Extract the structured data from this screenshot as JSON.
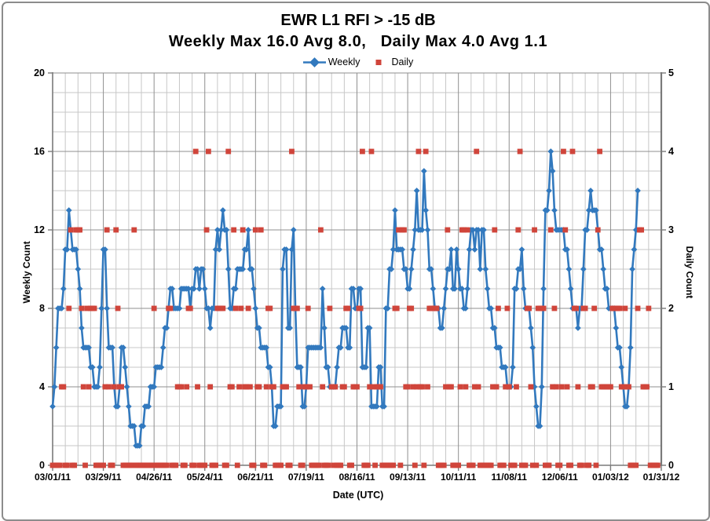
{
  "chart_data": {
    "type": "line",
    "title": "EWR L1 RFI > -15 dB",
    "subtitle": "Weekly Max 16.0 Avg 8.0,   Daily Max 4.0 Avg 1.1",
    "stats": {
      "weekly_max": 16.0,
      "weekly_avg": 8.0,
      "daily_max": 4.0,
      "daily_avg": 1.1
    },
    "x_axis": {
      "label": "Date (UTC)",
      "tick_labels": [
        "03/01/11",
        "03/29/11",
        "04/26/11",
        "05/24/11",
        "06/21/11",
        "07/19/11",
        "08/16/11",
        "09/13/11",
        "10/11/11",
        "11/08/11",
        "12/06/11",
        "01/03/12",
        "01/31/12"
      ],
      "days_total": 336,
      "tick_interval_days": 28,
      "minor_gridline_days": 7
    },
    "y_left": {
      "label": "Weekly Count",
      "min": 0,
      "max": 20,
      "major": 4,
      "minor": 1,
      "tick_labels": [
        "0",
        "4",
        "8",
        "12",
        "16",
        "20"
      ]
    },
    "y_right": {
      "label": "Daily Count",
      "min": 0,
      "max": 5,
      "major": 1,
      "minor": 0.25,
      "tick_labels": [
        "0",
        "1",
        "2",
        "3",
        "4",
        "5"
      ]
    },
    "legend_position": "top",
    "grid": true,
    "series": [
      {
        "name": "Weekly",
        "axis": "left",
        "color": "#3279be",
        "marker": "diamond",
        "line": true,
        "start_day": 0,
        "values": [
          3,
          4,
          6,
          8,
          8,
          8,
          9,
          11,
          11,
          13,
          12,
          11,
          11,
          11,
          10,
          9,
          7,
          6,
          6,
          6,
          6,
          5,
          5,
          4,
          4,
          4,
          5,
          8,
          11,
          11,
          8,
          6,
          6,
          6,
          4,
          3,
          3,
          4,
          6,
          6,
          5,
          4,
          3,
          2,
          2,
          2,
          1,
          1,
          1,
          2,
          2,
          3,
          3,
          3,
          4,
          4,
          4,
          5,
          5,
          5,
          5,
          6,
          7,
          7,
          8,
          9,
          9,
          8,
          8,
          8,
          8,
          9,
          9,
          9,
          9,
          9,
          8,
          9,
          9,
          10,
          10,
          9,
          10,
          10,
          9,
          8,
          8,
          7,
          8,
          8,
          11,
          12,
          11,
          12,
          13,
          12,
          12,
          10,
          8,
          8,
          9,
          9,
          10,
          10,
          10,
          10,
          11,
          11,
          12,
          10,
          10,
          9,
          8,
          7,
          7,
          6,
          6,
          6,
          6,
          5,
          5,
          4,
          2,
          2,
          3,
          3,
          3,
          10,
          11,
          11,
          7,
          7,
          11,
          12,
          8,
          5,
          5,
          5,
          3,
          3,
          4,
          6,
          6,
          6,
          6,
          6,
          6,
          6,
          6,
          9,
          7,
          5,
          5,
          4,
          4,
          4,
          4,
          5,
          6,
          6,
          7,
          7,
          7,
          6,
          6,
          9,
          9,
          8,
          8,
          9,
          9,
          5,
          5,
          5,
          7,
          7,
          3,
          3,
          3,
          3,
          5,
          5,
          3,
          3,
          8,
          8,
          10,
          10,
          11,
          13,
          11,
          11,
          11,
          11,
          10,
          10,
          9,
          9,
          10,
          11,
          12,
          14,
          12,
          12,
          12,
          15,
          13,
          12,
          10,
          10,
          9,
          8,
          8,
          8,
          7,
          7,
          8,
          9,
          10,
          10,
          11,
          9,
          9,
          11,
          10,
          9,
          9,
          8,
          8,
          9,
          11,
          12,
          12,
          11,
          12,
          12,
          10,
          12,
          12,
          10,
          9,
          8,
          8,
          7,
          7,
          6,
          6,
          6,
          5,
          5,
          5,
          4,
          4,
          4,
          5,
          9,
          9,
          10,
          10,
          11,
          9,
          8,
          8,
          8,
          7,
          6,
          4,
          3,
          2,
          2,
          4,
          9,
          13,
          13,
          14,
          16,
          15,
          13,
          12,
          12,
          12,
          12,
          12,
          11,
          11,
          10,
          9,
          8,
          8,
          8,
          7,
          8,
          8,
          10,
          12,
          12,
          13,
          14,
          13,
          13,
          13,
          12,
          11,
          11,
          10,
          9,
          9,
          8,
          8,
          8,
          8,
          7,
          6,
          6,
          5,
          4,
          3,
          3,
          4,
          6,
          10,
          11,
          12,
          14
        ]
      },
      {
        "name": "Daily",
        "axis": "right",
        "color": "#d0453b",
        "marker": "square",
        "line": false,
        "start_day": 0,
        "values": [
          0,
          0,
          0,
          0,
          0,
          1,
          1,
          0,
          0,
          2,
          3,
          0,
          0,
          3,
          3,
          3,
          2,
          1,
          0,
          2,
          1,
          2,
          2,
          2,
          0,
          0,
          0,
          0,
          0,
          1,
          3,
          1,
          0,
          0,
          1,
          3,
          2,
          1,
          1,
          0,
          0,
          0,
          0,
          0,
          0,
          3,
          0,
          0,
          0,
          0,
          0,
          0,
          0,
          0,
          0,
          0,
          2,
          0,
          0,
          0,
          0,
          0,
          0,
          0,
          2,
          2,
          0,
          0,
          0,
          1,
          1,
          1,
          0,
          0,
          1,
          2,
          2,
          0,
          0,
          4,
          1,
          0,
          0,
          0,
          0,
          3,
          4,
          1,
          0,
          0,
          0,
          2,
          2,
          2,
          2,
          0,
          0,
          4,
          1,
          1,
          3,
          2,
          0,
          1,
          2,
          3,
          1,
          1,
          2,
          1,
          0,
          0,
          3,
          1,
          1,
          3,
          0,
          0,
          1,
          2,
          2,
          1,
          1,
          0,
          0,
          0,
          0,
          1,
          1,
          1,
          0,
          0,
          4,
          2,
          2,
          2,
          1,
          0,
          0,
          1,
          1,
          2,
          1,
          0,
          0,
          0,
          0,
          0,
          3,
          1,
          0,
          0,
          0,
          2,
          1,
          0,
          1,
          0,
          0,
          0,
          1,
          1,
          2,
          2,
          0,
          0,
          1,
          1,
          1,
          2,
          2,
          4,
          0,
          0,
          0,
          1,
          4,
          1,
          0,
          1,
          1,
          1,
          0,
          0,
          0,
          0,
          0,
          0,
          0,
          2,
          2,
          3,
          0,
          3,
          3,
          1,
          1,
          2,
          2,
          1,
          0,
          1,
          4,
          1,
          1,
          0,
          4,
          1,
          2,
          2,
          2,
          2,
          2,
          0,
          0,
          0,
          0,
          1,
          3,
          1,
          1,
          0,
          0,
          0,
          0,
          1,
          3,
          3,
          1,
          3,
          0,
          0,
          0,
          1,
          4,
          1,
          0,
          0,
          0,
          0,
          0,
          0,
          0,
          1,
          3,
          1,
          2,
          0,
          0,
          0,
          1,
          2,
          1,
          0,
          0,
          0,
          1,
          3,
          4,
          0,
          0,
          0,
          2,
          2,
          1,
          0,
          3,
          0,
          2,
          2,
          2,
          2,
          0,
          0,
          0,
          3,
          1,
          2,
          1,
          0,
          0,
          1,
          4,
          3,
          1,
          0,
          0,
          4,
          2,
          2,
          1,
          0,
          0,
          2,
          2,
          0,
          0,
          1,
          1,
          2,
          0,
          3,
          4,
          1,
          1,
          1,
          1,
          1,
          1,
          2,
          2,
          2,
          2,
          2,
          1,
          1,
          2,
          1,
          1,
          0,
          0,
          0,
          0,
          2,
          3,
          3,
          1,
          1,
          1,
          2,
          0,
          0,
          0,
          0,
          0
        ]
      }
    ]
  },
  "frame": {
    "background": "#ffffff",
    "border_color": "#8c8c8c",
    "grid_minor_color": "#c7c7c7",
    "grid_major_color": "#8f8f8f",
    "axis_color": "#7a7a7a",
    "text_color": "#000000"
  }
}
